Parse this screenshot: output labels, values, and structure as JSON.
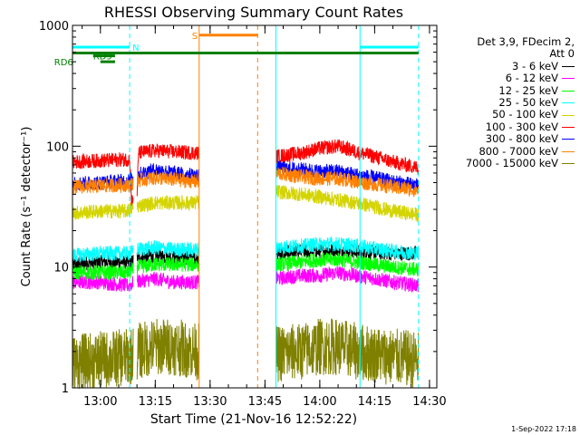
{
  "chart_data": {
    "type": "line",
    "title": "RHESSI Observing Summary Count Rates",
    "xlabel": "Start Time (21-Nov-16 12:52:22)",
    "ylabel": "Count Rate (s⁻¹ detector⁻¹)",
    "yscale": "log",
    "ylim": [
      1,
      1000
    ],
    "y_ticks": [
      {
        "value": 1,
        "label": "1"
      },
      {
        "value": 10,
        "label": "10"
      },
      {
        "value": 100,
        "label": "100"
      },
      {
        "value": 1000,
        "label": "1000"
      }
    ],
    "xlim": [
      "12:52:22",
      "14:32:00"
    ],
    "x_ticks": [
      "13:00",
      "13:15",
      "13:30",
      "13:45",
      "14:00",
      "14:15",
      "14:30"
    ],
    "legend": {
      "placement": "right",
      "header": [
        "Det 3,9, FDecim 2,",
        "Att 0"
      ]
    },
    "series": [
      {
        "name": "3 - 6 keV",
        "color": "#000000",
        "points": [
          [
            "12:52:22",
            10.5
          ],
          [
            "13:00",
            11
          ],
          [
            "13:07",
            11
          ],
          [
            "13:08",
            10.5
          ],
          [
            "13:10",
            12
          ],
          [
            "13:15",
            12.5
          ],
          [
            "13:20",
            12
          ],
          [
            "13:26",
            12
          ],
          [
            "13:48",
            13
          ],
          [
            "13:55",
            13.5
          ],
          [
            "14:00",
            13.5
          ],
          [
            "14:05",
            14
          ],
          [
            "14:10",
            13.5
          ],
          [
            "14:20",
            13
          ],
          [
            "14:27",
            13
          ]
        ]
      },
      {
        "name": "6 - 12 keV",
        "color": "#ff00ff",
        "points": [
          [
            "12:52:22",
            7.5
          ],
          [
            "13:00",
            7.5
          ],
          [
            "13:08",
            7
          ],
          [
            "13:09",
            7.5
          ],
          [
            "13:15",
            8
          ],
          [
            "13:20",
            7.5
          ],
          [
            "13:26",
            7.5
          ],
          [
            "13:48",
            8
          ],
          [
            "13:55",
            8.5
          ],
          [
            "14:00",
            8.5
          ],
          [
            "14:05",
            9
          ],
          [
            "14:10",
            8.5
          ],
          [
            "14:20",
            7.5
          ],
          [
            "14:27",
            7
          ]
        ]
      },
      {
        "name": "12 - 25 keV",
        "color": "#00ff00",
        "points": [
          [
            "12:52:22",
            9
          ],
          [
            "13:00",
            9
          ],
          [
            "13:08",
            9
          ],
          [
            "13:10",
            10
          ],
          [
            "13:15",
            10.5
          ],
          [
            "13:20",
            10.5
          ],
          [
            "13:26",
            10.5
          ],
          [
            "13:48",
            10.5
          ],
          [
            "13:55",
            11
          ],
          [
            "14:00",
            11.5
          ],
          [
            "14:05",
            11.5
          ],
          [
            "14:10",
            11
          ],
          [
            "14:20",
            10
          ],
          [
            "14:27",
            9.5
          ]
        ]
      },
      {
        "name": "25 - 50 keV",
        "color": "#00ffff",
        "points": [
          [
            "12:52:22",
            12.5
          ],
          [
            "13:00",
            13
          ],
          [
            "13:08",
            13
          ],
          [
            "13:10",
            14
          ],
          [
            "13:15",
            14.5
          ],
          [
            "13:20",
            14
          ],
          [
            "13:26",
            14
          ],
          [
            "13:48",
            14.5
          ],
          [
            "13:55",
            15
          ],
          [
            "14:00",
            15.5
          ],
          [
            "14:05",
            15.5
          ],
          [
            "14:10",
            15
          ],
          [
            "14:20",
            13.5
          ],
          [
            "14:27",
            13
          ]
        ]
      },
      {
        "name": "50 - 100 keV",
        "color": "#d4d400",
        "points": [
          [
            "12:52:22",
            28
          ],
          [
            "13:00",
            29
          ],
          [
            "13:07",
            29
          ],
          [
            "13:08",
            30
          ],
          [
            "13:10",
            32
          ],
          [
            "13:15",
            34
          ],
          [
            "13:20",
            34
          ],
          [
            "13:26",
            34
          ],
          [
            "13:48",
            42
          ],
          [
            "13:55",
            40
          ],
          [
            "14:00",
            38
          ],
          [
            "14:05",
            36
          ],
          [
            "14:10",
            34
          ],
          [
            "14:20",
            29
          ],
          [
            "14:27",
            27
          ]
        ]
      },
      {
        "name": "100 - 300 keV",
        "color": "#ff0000",
        "points": [
          [
            "12:52:22",
            74
          ],
          [
            "13:00",
            76
          ],
          [
            "13:08",
            78
          ],
          [
            "13:08:30",
            35
          ],
          [
            "13:10",
            38
          ],
          [
            "13:10:30",
            88
          ],
          [
            "13:15",
            92
          ],
          [
            "13:20",
            90
          ],
          [
            "13:26",
            88
          ],
          [
            "13:48",
            82
          ],
          [
            "13:55",
            88
          ],
          [
            "14:00",
            96
          ],
          [
            "14:05",
            100
          ],
          [
            "14:10",
            90
          ],
          [
            "14:20",
            74
          ],
          [
            "14:27",
            66
          ]
        ]
      },
      {
        "name": "300 - 800 keV",
        "color": "#0000ff",
        "points": [
          [
            "12:52:22",
            49
          ],
          [
            "13:00",
            50
          ],
          [
            "13:08",
            52
          ],
          [
            "13:10",
            58
          ],
          [
            "13:15",
            64
          ],
          [
            "13:20",
            60
          ],
          [
            "13:26",
            57
          ],
          [
            "13:48",
            66
          ],
          [
            "13:55",
            64
          ],
          [
            "14:00",
            62
          ],
          [
            "14:05",
            62
          ],
          [
            "14:10",
            58
          ],
          [
            "14:20",
            51
          ],
          [
            "14:27",
            47
          ]
        ]
      },
      {
        "name": "800 - 7000 keV",
        "color": "#ff8000",
        "points": [
          [
            "12:52:22",
            46
          ],
          [
            "13:00",
            47
          ],
          [
            "13:08",
            48
          ],
          [
            "13:10",
            52
          ],
          [
            "13:15",
            55
          ],
          [
            "13:20",
            53
          ],
          [
            "13:26",
            51
          ],
          [
            "13:48",
            60
          ],
          [
            "13:55",
            56
          ],
          [
            "14:00",
            54
          ],
          [
            "14:05",
            54
          ],
          [
            "14:10",
            51
          ],
          [
            "14:20",
            46
          ],
          [
            "14:27",
            43
          ]
        ]
      },
      {
        "name": "7000 - 15000 keV",
        "color": "#808000",
        "points": [
          [
            "12:52:22",
            1.6
          ],
          [
            "13:00",
            1.7
          ],
          [
            "13:08",
            1.8
          ],
          [
            "13:10",
            2.0
          ],
          [
            "13:15",
            2.2
          ],
          [
            "13:20",
            2.2
          ],
          [
            "13:26",
            2.0
          ],
          [
            "13:48",
            1.9
          ],
          [
            "13:55",
            2.0
          ],
          [
            "14:00",
            2.2
          ],
          [
            "14:05",
            2.2
          ],
          [
            "14:10",
            2.0
          ],
          [
            "14:20",
            1.8
          ],
          [
            "14:27",
            1.7
          ]
        ]
      }
    ],
    "data_gaps": [
      [
        "13:09",
        "13:10"
      ],
      [
        "13:27",
        "13:48"
      ]
    ],
    "vertical_markers": [
      {
        "time": "12:52:22",
        "color": "#00ffff",
        "style": "solid"
      },
      {
        "time": "13:08",
        "color": "#00ffff",
        "style": "dashed"
      },
      {
        "time": "13:27",
        "color": "#ff8000",
        "style": "solid"
      },
      {
        "time": "13:43",
        "color": "#ff8000",
        "style": "dashed"
      },
      {
        "time": "13:48",
        "color": "#00ffff",
        "style": "solid"
      },
      {
        "time": "14:11",
        "color": "#00ffff",
        "style": "solid"
      },
      {
        "time": "14:27",
        "color": "#00ffff",
        "style": "dashed"
      }
    ],
    "flag_bars": [
      {
        "label": "N",
        "color": "#00ffff",
        "level": 660,
        "segments": [
          [
            "12:52:22",
            "13:08"
          ],
          [
            "14:11",
            "14:27"
          ]
        ]
      },
      {
        "label": "",
        "color": "#008000",
        "level": 590,
        "segments": [
          [
            "12:52:22",
            "14:27"
          ]
        ]
      },
      {
        "label": "RD9",
        "color": "#008000",
        "level": 560,
        "segments": [
          [
            "12:58",
            "13:04"
          ]
        ]
      },
      {
        "label": "RD6",
        "color": "#008000",
        "level": 500,
        "segments": [
          [
            "13:00",
            "13:04"
          ]
        ]
      },
      {
        "label": "S",
        "color": "#ff8000",
        "level": 830,
        "segments": [
          [
            "13:27",
            "13:43"
          ]
        ]
      }
    ]
  },
  "footer": "1-Sep-2022 17:18"
}
